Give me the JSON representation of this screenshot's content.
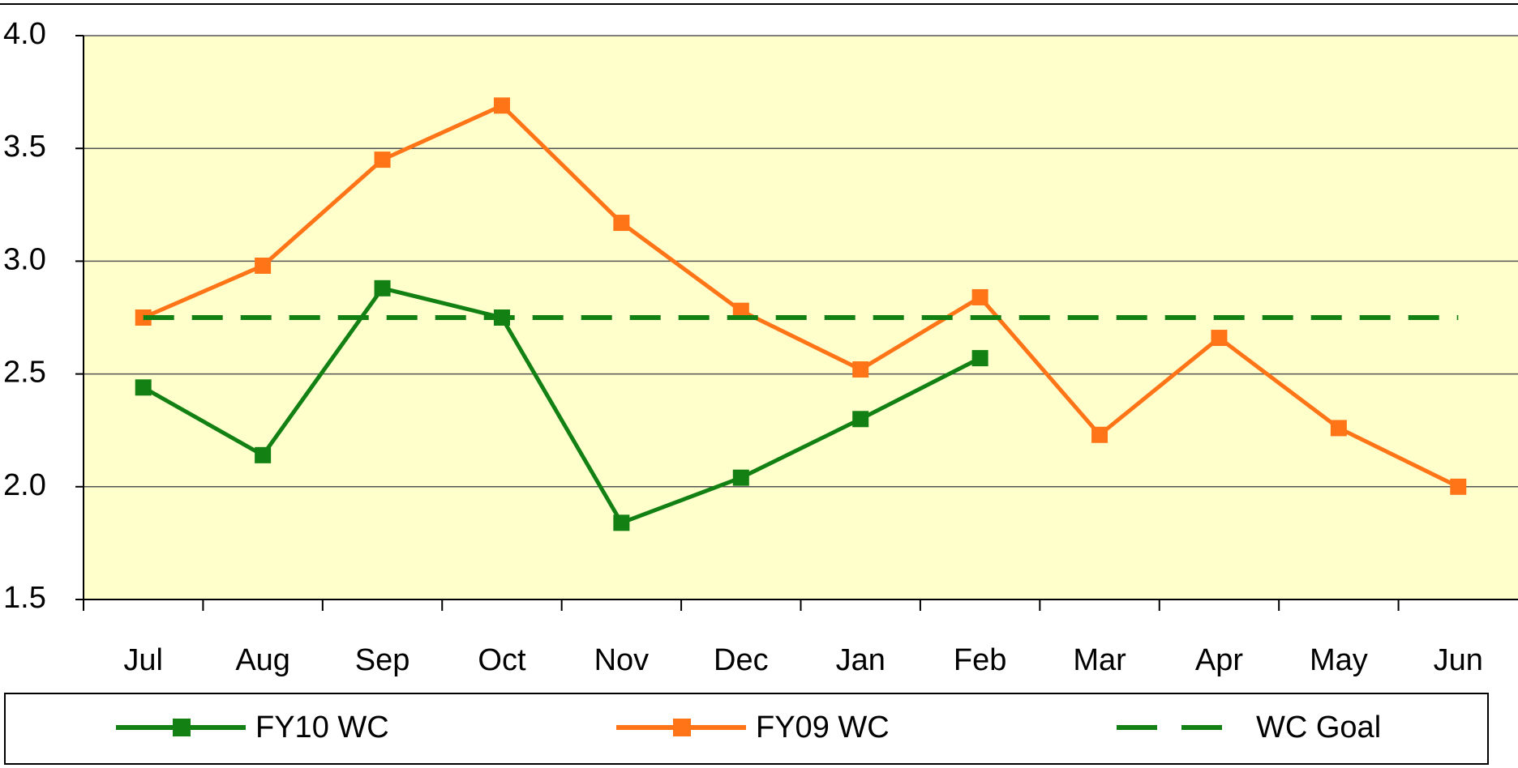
{
  "chart_data": {
    "type": "line",
    "categories": [
      "Jul",
      "Aug",
      "Sep",
      "Oct",
      "Nov",
      "Dec",
      "Jan",
      "Feb",
      "Mar",
      "Apr",
      "May",
      "Jun"
    ],
    "series": [
      {
        "name": "FY10 WC",
        "color": "#128012",
        "values": [
          2.44,
          2.14,
          2.88,
          2.75,
          1.84,
          2.04,
          2.3,
          2.57,
          null,
          null,
          null,
          null
        ]
      },
      {
        "name": "FY09 WC",
        "color": "#ff7417",
        "values": [
          2.75,
          2.98,
          3.45,
          3.69,
          3.17,
          2.78,
          2.52,
          2.84,
          2.23,
          2.66,
          2.26,
          2.0
        ]
      },
      {
        "name": "WC Goal",
        "color": "#128012",
        "dashed": true,
        "values": [
          2.75,
          2.75,
          2.75,
          2.75,
          2.75,
          2.75,
          2.75,
          2.75,
          2.75,
          2.75,
          2.75,
          2.75
        ]
      }
    ],
    "ylim": [
      1.5,
      4.0
    ],
    "yticks": [
      {
        "value": 1.5,
        "label": "1.5"
      },
      {
        "value": 2.0,
        "label": "2.0"
      },
      {
        "value": 2.5,
        "label": "2.5"
      },
      {
        "value": 3.0,
        "label": "3.0"
      },
      {
        "value": 3.5,
        "label": "3.5"
      },
      {
        "value": 4.0,
        "label": "4.0"
      }
    ],
    "grid": true,
    "legend": "bottom"
  }
}
